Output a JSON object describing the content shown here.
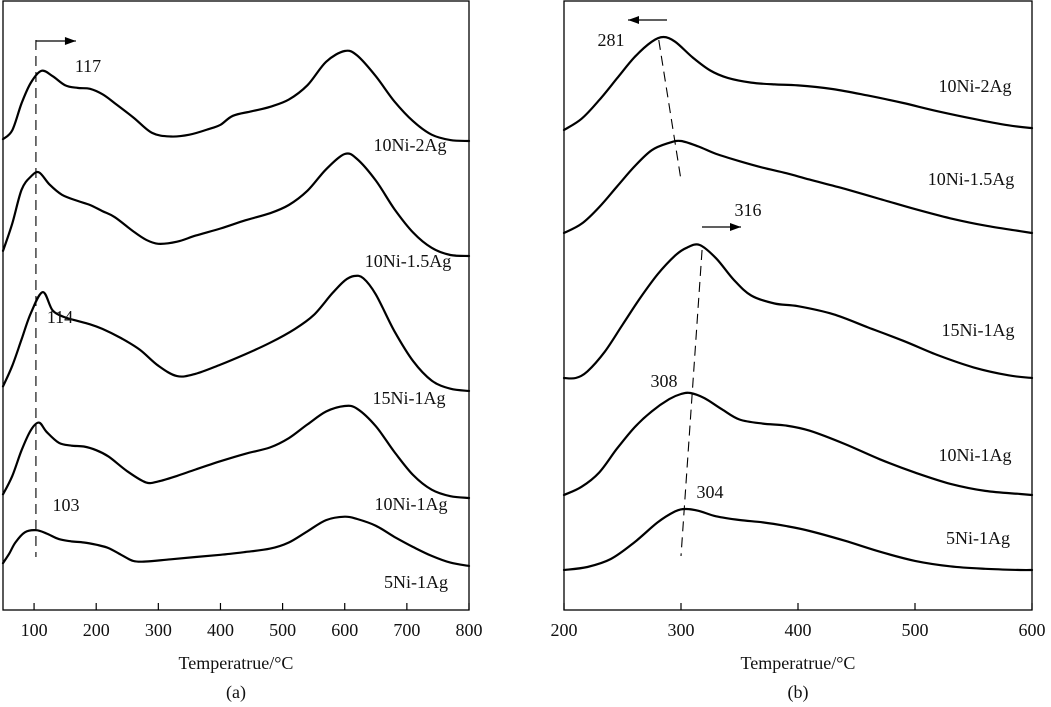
{
  "chart_data": [
    {
      "type": "line",
      "panel_label": "(a)",
      "xlabel": "Temperatrue/°C",
      "ylabel": "",
      "xlim": [
        50,
        800
      ],
      "x_ticks": [
        100,
        200,
        300,
        400,
        500,
        600,
        700,
        800
      ],
      "x_tick_labels": [
        "100",
        "200",
        "300",
        "400",
        "500",
        "600",
        "700",
        "800"
      ],
      "grid": false,
      "series_order_top_to_bottom": [
        "10Ni-2Ag",
        "10Ni-1.5Ag",
        "15Ni-1Ag",
        "10Ni-1Ag",
        "5Ni-1Ag"
      ],
      "series": [
        {
          "name": "10Ni-2Ag",
          "x": [
            50,
            65,
            80,
            95,
            112,
            130,
            150,
            170,
            190,
            210,
            230,
            260,
            290,
            320,
            350,
            380,
            400,
            420,
            450,
            480,
            510,
            540,
            570,
            600,
            620,
            650,
            680,
            710,
            740,
            770,
            800
          ],
          "y": [
            0.02,
            0.12,
            0.42,
            0.65,
            0.78,
            0.72,
            0.62,
            0.59,
            0.58,
            0.52,
            0.42,
            0.26,
            0.09,
            0.05,
            0.07,
            0.13,
            0.18,
            0.28,
            0.33,
            0.38,
            0.46,
            0.62,
            0.88,
            1.0,
            0.95,
            0.72,
            0.44,
            0.22,
            0.07,
            0.01,
            0.0
          ]
        },
        {
          "name": "10Ni-1.5Ag",
          "x": [
            50,
            65,
            80,
            95,
            108,
            125,
            145,
            170,
            190,
            210,
            230,
            260,
            280,
            300,
            330,
            360,
            400,
            440,
            480,
            510,
            540,
            570,
            600,
            620,
            650,
            680,
            710,
            740,
            770,
            800
          ],
          "y": [
            0.05,
            0.32,
            0.65,
            0.78,
            0.82,
            0.7,
            0.6,
            0.54,
            0.5,
            0.44,
            0.38,
            0.24,
            0.16,
            0.12,
            0.14,
            0.2,
            0.27,
            0.35,
            0.42,
            0.5,
            0.64,
            0.85,
            1.0,
            0.95,
            0.74,
            0.46,
            0.23,
            0.08,
            0.01,
            0.0
          ]
        },
        {
          "name": "15Ni-1Ag",
          "x": [
            50,
            65,
            80,
            95,
            114,
            130,
            150,
            170,
            190,
            210,
            240,
            270,
            300,
            330,
            360,
            400,
            440,
            480,
            520,
            550,
            580,
            600,
            615,
            630,
            650,
            680,
            710,
            740,
            770,
            800
          ],
          "y": [
            0.04,
            0.22,
            0.45,
            0.68,
            0.86,
            0.7,
            0.64,
            0.61,
            0.58,
            0.54,
            0.46,
            0.36,
            0.22,
            0.13,
            0.15,
            0.23,
            0.32,
            0.42,
            0.54,
            0.66,
            0.85,
            0.96,
            1.0,
            0.98,
            0.84,
            0.52,
            0.26,
            0.09,
            0.02,
            0.0
          ]
        },
        {
          "name": "10Ni-1Ag",
          "x": [
            50,
            65,
            80,
            95,
            108,
            120,
            140,
            160,
            180,
            200,
            220,
            250,
            280,
            300,
            330,
            360,
            400,
            440,
            480,
            510,
            540,
            570,
            600,
            620,
            650,
            680,
            710,
            740,
            770,
            800
          ],
          "y": [
            0.04,
            0.24,
            0.52,
            0.74,
            0.82,
            0.72,
            0.6,
            0.57,
            0.56,
            0.52,
            0.45,
            0.29,
            0.17,
            0.18,
            0.24,
            0.31,
            0.4,
            0.48,
            0.55,
            0.65,
            0.8,
            0.94,
            1.0,
            0.97,
            0.78,
            0.5,
            0.25,
            0.09,
            0.02,
            0.0
          ]
        },
        {
          "name": "5Ni-1Ag",
          "x": [
            50,
            60,
            70,
            85,
            103,
            120,
            140,
            160,
            180,
            200,
            220,
            240,
            260,
            280,
            320,
            360,
            400,
            440,
            480,
            510,
            540,
            570,
            600,
            620,
            650,
            680,
            710,
            740,
            770,
            800
          ],
          "y": [
            0.05,
            0.22,
            0.42,
            0.6,
            0.64,
            0.58,
            0.48,
            0.44,
            0.42,
            0.38,
            0.32,
            0.2,
            0.09,
            0.08,
            0.12,
            0.16,
            0.2,
            0.25,
            0.31,
            0.42,
            0.62,
            0.82,
            0.88,
            0.84,
            0.72,
            0.52,
            0.34,
            0.18,
            0.06,
            0.0
          ]
        }
      ],
      "annotations": [
        {
          "text": "117",
          "x": 117,
          "near_series": "10Ni-2Ag",
          "arrow": "right"
        },
        {
          "text": "114",
          "x": 114,
          "near_series": "15Ni-1Ag"
        },
        {
          "text": "103",
          "x": 103,
          "near_series": "5Ni-1Ag"
        }
      ],
      "reference_line_x": 103
    },
    {
      "type": "line",
      "panel_label": "(b)",
      "xlabel": "Temperatrue/°C",
      "ylabel": "",
      "xlim": [
        200,
        600
      ],
      "x_ticks": [
        200,
        300,
        400,
        500,
        600
      ],
      "x_tick_labels": [
        "200",
        "300",
        "400",
        "500",
        "600"
      ],
      "grid": false,
      "series_order_top_to_bottom": [
        "10Ni-2Ag",
        "10Ni-1.5Ag",
        "15Ni-1Ag",
        "10Ni-1Ag",
        "5Ni-1Ag"
      ],
      "series": [
        {
          "name": "10Ni-2Ag",
          "x": [
            200,
            215,
            230,
            245,
            260,
            275,
            285,
            295,
            310,
            325,
            340,
            360,
            380,
            400,
            430,
            460,
            490,
            520,
            550,
            580,
            600
          ],
          "y": [
            0.0,
            0.12,
            0.32,
            0.55,
            0.78,
            0.95,
            1.0,
            0.95,
            0.78,
            0.64,
            0.56,
            0.51,
            0.49,
            0.48,
            0.44,
            0.37,
            0.29,
            0.2,
            0.12,
            0.05,
            0.02
          ]
        },
        {
          "name": "10Ni-1.5Ag",
          "x": [
            200,
            215,
            230,
            245,
            260,
            275,
            290,
            300,
            315,
            330,
            350,
            370,
            390,
            410,
            440,
            470,
            500,
            530,
            560,
            590,
            600
          ],
          "y": [
            0.0,
            0.1,
            0.28,
            0.5,
            0.72,
            0.9,
            0.98,
            1.0,
            0.94,
            0.86,
            0.78,
            0.71,
            0.65,
            0.58,
            0.48,
            0.37,
            0.26,
            0.16,
            0.08,
            0.02,
            0.0
          ]
        },
        {
          "name": "15Ni-1Ag",
          "x": [
            200,
            210,
            220,
            235,
            250,
            265,
            280,
            295,
            305,
            316,
            330,
            345,
            360,
            380,
            400,
            430,
            460,
            490,
            520,
            550,
            580,
            600
          ],
          "y": [
            0.0,
            0.0,
            0.05,
            0.2,
            0.4,
            0.6,
            0.78,
            0.92,
            0.98,
            1.0,
            0.9,
            0.74,
            0.62,
            0.56,
            0.54,
            0.48,
            0.38,
            0.28,
            0.17,
            0.08,
            0.02,
            0.0
          ]
        },
        {
          "name": "10Ni-1Ag",
          "x": [
            200,
            215,
            230,
            245,
            260,
            275,
            290,
            300,
            308,
            320,
            335,
            350,
            370,
            390,
            410,
            440,
            470,
            500,
            530,
            560,
            590,
            600
          ],
          "y": [
            0.0,
            0.08,
            0.22,
            0.45,
            0.66,
            0.82,
            0.94,
            0.99,
            1.0,
            0.95,
            0.84,
            0.74,
            0.7,
            0.68,
            0.63,
            0.5,
            0.35,
            0.22,
            0.11,
            0.04,
            0.01,
            0.0
          ]
        },
        {
          "name": "5Ni-1Ag",
          "x": [
            200,
            220,
            240,
            260,
            280,
            295,
            304,
            315,
            330,
            350,
            370,
            390,
            410,
            440,
            470,
            500,
            530,
            560,
            590,
            600
          ],
          "y": [
            0.0,
            0.05,
            0.18,
            0.45,
            0.78,
            0.96,
            1.0,
            0.97,
            0.88,
            0.82,
            0.78,
            0.72,
            0.64,
            0.48,
            0.3,
            0.15,
            0.06,
            0.02,
            0.0,
            0.0
          ]
        }
      ],
      "annotations": [
        {
          "text": "281",
          "x": 281,
          "near_series": "10Ni-2Ag",
          "arrow": "left"
        },
        {
          "text": "316",
          "x": 316,
          "near_series": "15Ni-1Ag",
          "arrow": "right"
        },
        {
          "text": "308",
          "x": 308,
          "near_series": "10Ni-1Ag"
        },
        {
          "text": "304",
          "x": 304,
          "near_series": "5Ni-1Ag"
        }
      ]
    }
  ]
}
